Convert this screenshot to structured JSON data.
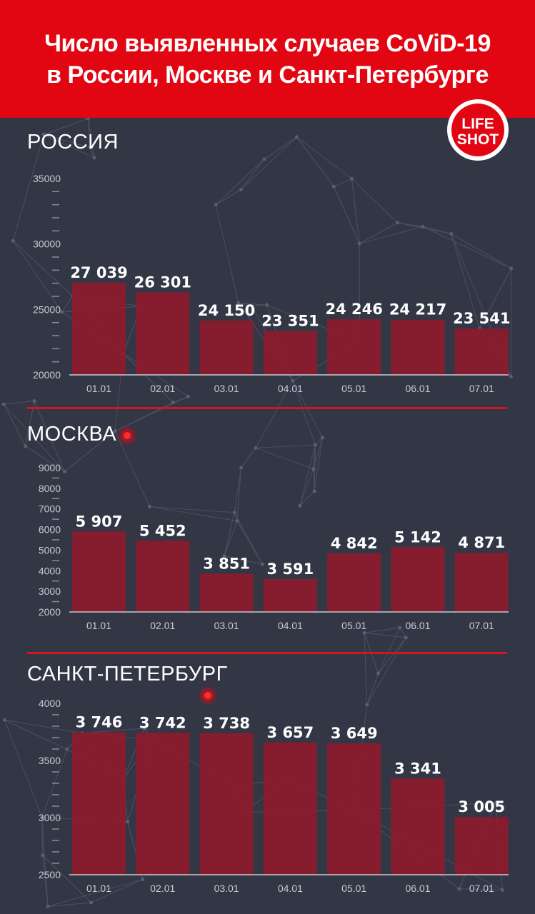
{
  "header": {
    "title_line1": "Число выявленных случаев CoViD-19",
    "title_line2": "в России, Москве и Санкт-Петербурге"
  },
  "logo": {
    "line1": "LIFE",
    "line2": "SHOT"
  },
  "colors": {
    "background": "#333645",
    "header": "#e20613",
    "bar": "#8b1c2e",
    "divider": "#d41424",
    "axis_text": "#c9cad4",
    "label_text": "#ffffff"
  },
  "chart_data": [
    {
      "type": "bar",
      "title": "РОССИЯ",
      "categories": [
        "01.01",
        "02.01",
        "03.01",
        "04.01",
        "05.01",
        "06.01",
        "07.01"
      ],
      "values": [
        27039,
        26301,
        24150,
        23351,
        24246,
        24217,
        23541
      ],
      "value_labels": [
        "27 039",
        "26 301",
        "24 150",
        "23 351",
        "24 246",
        "24 217",
        "23 541"
      ],
      "ylim": [
        20000,
        35000
      ],
      "yticks": [
        20000,
        25000,
        30000,
        35000
      ],
      "ytick_labels": [
        "20000",
        "25000",
        "30000",
        "35000"
      ],
      "xlabel": "",
      "ylabel": ""
    },
    {
      "type": "bar",
      "title": "МОСКВА",
      "categories": [
        "01.01",
        "02.01",
        "03.01",
        "04.01",
        "05.01",
        "06.01",
        "07.01"
      ],
      "values": [
        5907,
        5452,
        3851,
        3591,
        4842,
        5142,
        4871
      ],
      "value_labels": [
        "5 907",
        "5 452",
        "3 851",
        "3 591",
        "4 842",
        "5 142",
        "4 871"
      ],
      "ylim": [
        2000,
        9000
      ],
      "yticks": [
        2000,
        3000,
        4000,
        5000,
        6000,
        7000,
        8000,
        9000
      ],
      "ytick_labels": [
        "2000",
        "3000",
        "4000",
        "5000",
        "6000",
        "7000",
        "8000",
        "9000"
      ],
      "xlabel": "",
      "ylabel": ""
    },
    {
      "type": "bar",
      "title": "САНКТ-ПЕТЕРБУРГ",
      "categories": [
        "01.01",
        "02.01",
        "03.01",
        "04.01",
        "05.01",
        "06.01",
        "07.01"
      ],
      "values": [
        3746,
        3742,
        3738,
        3657,
        3649,
        3341,
        3005
      ],
      "value_labels": [
        "3 746",
        "3 742",
        "3 738",
        "3 657",
        "3 649",
        "3 341",
        "3 005"
      ],
      "ylim": [
        2500,
        4000
      ],
      "yticks": [
        2500,
        3000,
        3500,
        4000
      ],
      "ytick_labels": [
        "2500",
        "3000",
        "3500",
        "4000"
      ],
      "xlabel": "",
      "ylabel": ""
    }
  ]
}
